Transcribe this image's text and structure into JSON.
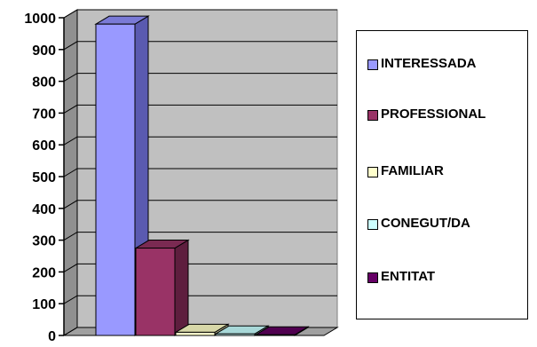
{
  "chart_data": {
    "type": "bar",
    "categories": [
      "INTERESSADA",
      "PROFESSIONAL",
      "FAMILIAR",
      "CONEGUT/DA",
      "ENTITAT"
    ],
    "values": [
      980,
      275,
      10,
      5,
      2
    ],
    "ylim": [
      0,
      1000
    ],
    "yticks": [
      "0",
      "100",
      "200",
      "300",
      "400",
      "500",
      "600",
      "700",
      "800",
      "900",
      "1000"
    ],
    "grid": true,
    "legend_position": "right",
    "colors": {
      "bars": [
        "#9999ff",
        "#993366",
        "#ffffcc",
        "#ccffff",
        "#660066"
      ],
      "bars_side": [
        "#5a5ab0",
        "#5e1e3e",
        "#b0b08a",
        "#8ab0b0",
        "#3c003c"
      ],
      "bars_top": [
        "#7a7ad6",
        "#7a2a52",
        "#d8d8a8",
        "#a8d8d8",
        "#500050"
      ],
      "wall": "#c0c0c0",
      "floor": "#a0a0a0"
    }
  },
  "legend": {
    "items": [
      {
        "label": "INTERESSADA",
        "color": "#9999ff"
      },
      {
        "label": "PROFESSIONAL",
        "color": "#993366"
      },
      {
        "label": "FAMILIAR",
        "color": "#ffffcc"
      },
      {
        "label": "CONEGUT/DA",
        "color": "#ccffff"
      },
      {
        "label": "ENTITAT",
        "color": "#660066"
      }
    ]
  }
}
